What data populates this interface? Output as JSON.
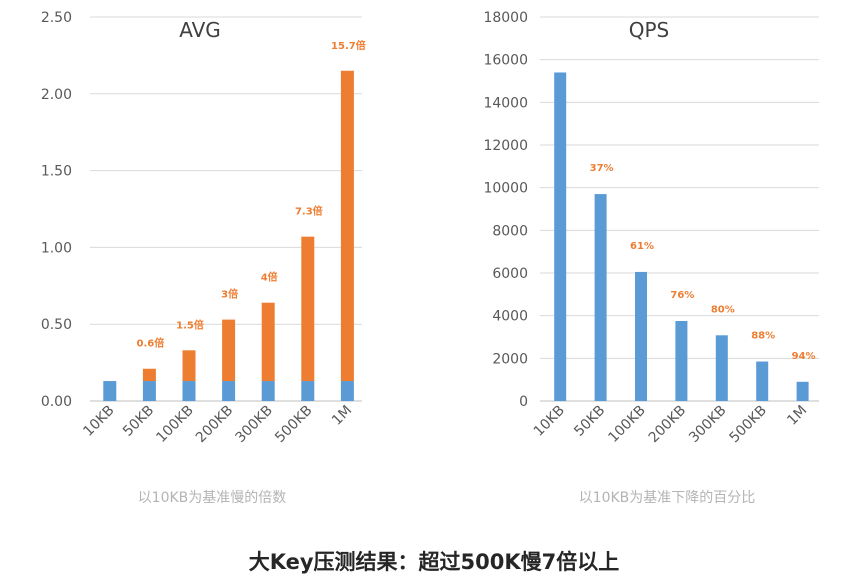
{
  "colors": {
    "base": "#5b9bd5",
    "extra": "#ed7d31",
    "grid": "#d9d9d9",
    "axis": "#bfbfbf",
    "note": "#b4b4b4"
  },
  "footer_text": "大Key压测结果：超过500K慢7倍以上",
  "chart_data": [
    {
      "type": "bar",
      "stacked": true,
      "title": "AVG",
      "note": "以10KB为基准慢的倍数",
      "categories": [
        "10KB",
        "50KB",
        "100KB",
        "200KB",
        "300KB",
        "500KB",
        "1M"
      ],
      "series": [
        {
          "values": [
            0.13,
            0.13,
            0.13,
            0.13,
            0.13,
            0.13,
            0.13
          ]
        },
        {
          "values": [
            0.0,
            0.08,
            0.2,
            0.4,
            0.51,
            0.94,
            2.02
          ]
        }
      ],
      "data_labels": [
        "",
        "0.6倍",
        "1.5倍",
        "3倍",
        "4倍",
        "7.3倍",
        "15.7倍"
      ],
      "ylim": [
        0,
        2.5
      ],
      "yticks": [
        "0.00",
        "0.50",
        "1.00",
        "1.50",
        "2.00",
        "2.50"
      ],
      "grid": true
    },
    {
      "type": "bar",
      "title": "QPS",
      "note": "以10KB为基准下降的百分比",
      "categories": [
        "10KB",
        "50KB",
        "100KB",
        "200KB",
        "300KB",
        "500KB",
        "1M"
      ],
      "series": [
        {
          "values": [
            15400,
            9700,
            6050,
            3750,
            3080,
            1850,
            900
          ]
        }
      ],
      "data_labels": [
        "",
        "37%",
        "61%",
        "76%",
        "80%",
        "88%",
        "94%"
      ],
      "ylim": [
        0,
        18000
      ],
      "yticks": [
        "0",
        "2000",
        "4000",
        "6000",
        "8000",
        "10000",
        "12000",
        "14000",
        "16000",
        "18000"
      ],
      "grid": true
    }
  ]
}
